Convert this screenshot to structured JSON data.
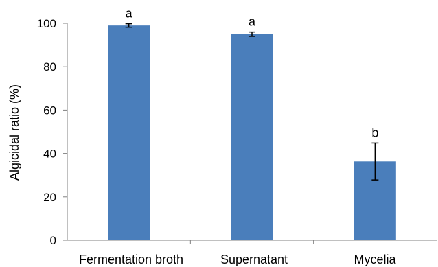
{
  "chart_data": {
    "type": "bar",
    "categories": [
      "Fermentation broth",
      "Supernatant",
      "Mycelia"
    ],
    "values": [
      99,
      95,
      36.3
    ],
    "error": [
      0.8,
      1.0,
      8.5
    ],
    "significance": [
      "a",
      "a",
      "b"
    ],
    "title": "",
    "xlabel": "",
    "ylabel": "Algicidal ratio (%)",
    "ylim": [
      0,
      100
    ],
    "yticks": [
      0,
      20,
      40,
      60,
      80,
      100
    ],
    "bar_color": "#4a7ebb",
    "grid": false,
    "legend": "none"
  }
}
